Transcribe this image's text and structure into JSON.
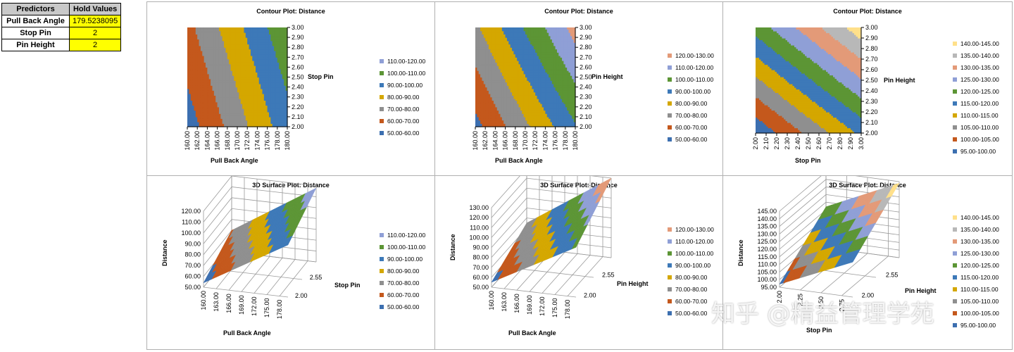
{
  "hold_table": {
    "header": [
      "Predictors",
      "Hold Values"
    ],
    "rows": [
      {
        "label": "Pull Back Angle",
        "value": "179.5238095"
      },
      {
        "label": "Stop Pin",
        "value": "2"
      },
      {
        "label": "Pin Height",
        "value": "2"
      }
    ]
  },
  "watermark": "知乎 @精益管理学苑",
  "colors": {
    "50.00-60.00": "#3c6fb0",
    "60.00-70.00": "#c4581c",
    "70.00-80.00": "#8f8f8f",
    "80.00-90.00": "#d4a700",
    "90.00-100.00": "#3d79b8",
    "100.00-110.00": "#5c9535",
    "110.00-120.00": "#8f9fd6",
    "120.00-130.00": "#e39a78",
    "95.00-100.00": "#3c6fb0",
    "100.00-105.00": "#c4581c",
    "105.00-110.00": "#8f8f8f",
    "110.00-115.00": "#d4a700",
    "115.00-120.00": "#3d79b8",
    "120.00-125.00": "#5c9535",
    "125.00-130.00": "#8f9fd6",
    "130.00-135.00": "#e39a78",
    "135.00-140.00": "#b8b8b8",
    "140.00-145.00": "#ffe08a"
  },
  "chart_data": [
    {
      "type": "heatmap",
      "title": "Contour Plot: Distance",
      "xlabel": "Pull Back Angle",
      "ylabel": "Stop Pin",
      "x_ticks": [
        "160.00",
        "162.00",
        "164.00",
        "166.00",
        "168.00",
        "170.00",
        "172.00",
        "174.00",
        "176.00",
        "178.00",
        "180.00"
      ],
      "y_ticks": [
        "2.00",
        "2.10",
        "2.20",
        "2.30",
        "2.40",
        "2.50",
        "2.60",
        "2.70",
        "2.80",
        "2.90",
        "3.00"
      ],
      "xlim": [
        160,
        180
      ],
      "ylim": [
        2,
        3
      ],
      "z_at_corners": {
        "x0y0": 55,
        "x1y0": 96,
        "x0y1": 67,
        "x1y1": 108
      },
      "legend": [
        "110.00-120.00",
        "100.00-110.00",
        "90.00-100.00",
        "80.00-90.00",
        "70.00-80.00",
        "60.00-70.00",
        "50.00-60.00"
      ],
      "band_step": 10,
      "band_base": 50
    },
    {
      "type": "heatmap",
      "title": "Contour Plot: Distance",
      "xlabel": "Pull Back Angle",
      "ylabel": "Pin Height",
      "x_ticks": [
        "160.00",
        "162.00",
        "164.00",
        "166.00",
        "168.00",
        "170.00",
        "172.00",
        "174.00",
        "176.00",
        "178.00",
        "180.00"
      ],
      "y_ticks": [
        "2.00",
        "2.10",
        "2.20",
        "2.30",
        "2.40",
        "2.50",
        "2.60",
        "2.70",
        "2.80",
        "2.90",
        "3.00"
      ],
      "xlim": [
        160,
        180
      ],
      "ylim": [
        2,
        3
      ],
      "z_at_corners": {
        "x0y0": 57,
        "x1y0": 99,
        "x0y1": 78,
        "x1y1": 124
      },
      "legend": [
        "120.00-130.00",
        "110.00-120.00",
        "100.00-110.00",
        "90.00-100.00",
        "80.00-90.00",
        "70.00-80.00",
        "60.00-70.00",
        "50.00-60.00"
      ],
      "band_step": 10,
      "band_base": 50
    },
    {
      "type": "heatmap",
      "title": "Contour Plot: Distance",
      "xlabel": "Stop Pin",
      "ylabel": "Pin Height",
      "x_ticks": [
        "2.00",
        "2.10",
        "2.20",
        "2.30",
        "2.40",
        "2.50",
        "2.60",
        "2.70",
        "2.80",
        "2.90",
        "3.00"
      ],
      "y_ticks": [
        "2.00",
        "2.10",
        "2.20",
        "2.30",
        "2.40",
        "2.50",
        "2.60",
        "2.70",
        "2.80",
        "2.90",
        "3.00"
      ],
      "xlim": [
        2,
        3
      ],
      "ylim": [
        2,
        3
      ],
      "z_at_corners": {
        "x0y0": 96,
        "x1y0": 116,
        "x0y1": 122,
        "x1y1": 143
      },
      "legend": [
        "140.00-145.00",
        "135.00-140.00",
        "130.00-135.00",
        "125.00-130.00",
        "120.00-125.00",
        "115.00-120.00",
        "110.00-115.00",
        "105.00-110.00",
        "100.00-105.00",
        "95.00-100.00"
      ],
      "band_step": 5,
      "band_base": 95
    },
    {
      "type": "area",
      "title": "3D Surface Plot: Distance",
      "xlabel": "Pull Back Angle",
      "ylabel": "Stop Pin",
      "zlabel": "Distance",
      "x_ticks": [
        "160.00",
        "163.00",
        "166.00",
        "169.00",
        "172.00",
        "175.00",
        "178.00"
      ],
      "y_ticks": [
        "2.00",
        "2.55"
      ],
      "z_ticks": [
        "50.00",
        "60.00",
        "70.00",
        "80.00",
        "90.00",
        "100.00",
        "110.00",
        "120.00"
      ],
      "legend": [
        "110.00-120.00",
        "100.00-110.00",
        "90.00-100.00",
        "80.00-90.00",
        "70.00-80.00",
        "60.00-70.00",
        "50.00-60.00"
      ],
      "band_step": 10,
      "band_base": 50
    },
    {
      "type": "area",
      "title": "3D Surface Plot: Distance",
      "xlabel": "Pull Back Angle",
      "ylabel": "Pin Height",
      "zlabel": "Distance",
      "x_ticks": [
        "160.00",
        "163.00",
        "166.00",
        "169.00",
        "172.00",
        "175.00",
        "178.00"
      ],
      "y_ticks": [
        "2.00",
        "2.55"
      ],
      "z_ticks": [
        "50.00",
        "60.00",
        "70.00",
        "80.00",
        "90.00",
        "100.00",
        "110.00",
        "120.00",
        "130.00"
      ],
      "legend": [
        "120.00-130.00",
        "110.00-120.00",
        "100.00-110.00",
        "90.00-100.00",
        "80.00-90.00",
        "70.00-80.00",
        "60.00-70.00",
        "50.00-60.00"
      ],
      "band_step": 10,
      "band_base": 50
    },
    {
      "type": "area",
      "title": "3D Surface Plot: Distance",
      "xlabel": "Stop Pin",
      "ylabel": "Pin Height",
      "zlabel": "Distance",
      "x_ticks": [
        "2.00",
        "2.25",
        "2.50",
        "2.75"
      ],
      "y_ticks": [
        "2.00",
        "2.55"
      ],
      "z_ticks": [
        "95.00",
        "100.00",
        "105.00",
        "110.00",
        "115.00",
        "120.00",
        "125.00",
        "130.00",
        "135.00",
        "140.00",
        "145.00"
      ],
      "legend": [
        "140.00-145.00",
        "135.00-140.00",
        "130.00-135.00",
        "125.00-130.00",
        "120.00-125.00",
        "115.00-120.00",
        "110.00-115.00",
        "105.00-110.00",
        "100.00-105.00",
        "95.00-100.00"
      ],
      "band_step": 5,
      "band_base": 95
    }
  ]
}
